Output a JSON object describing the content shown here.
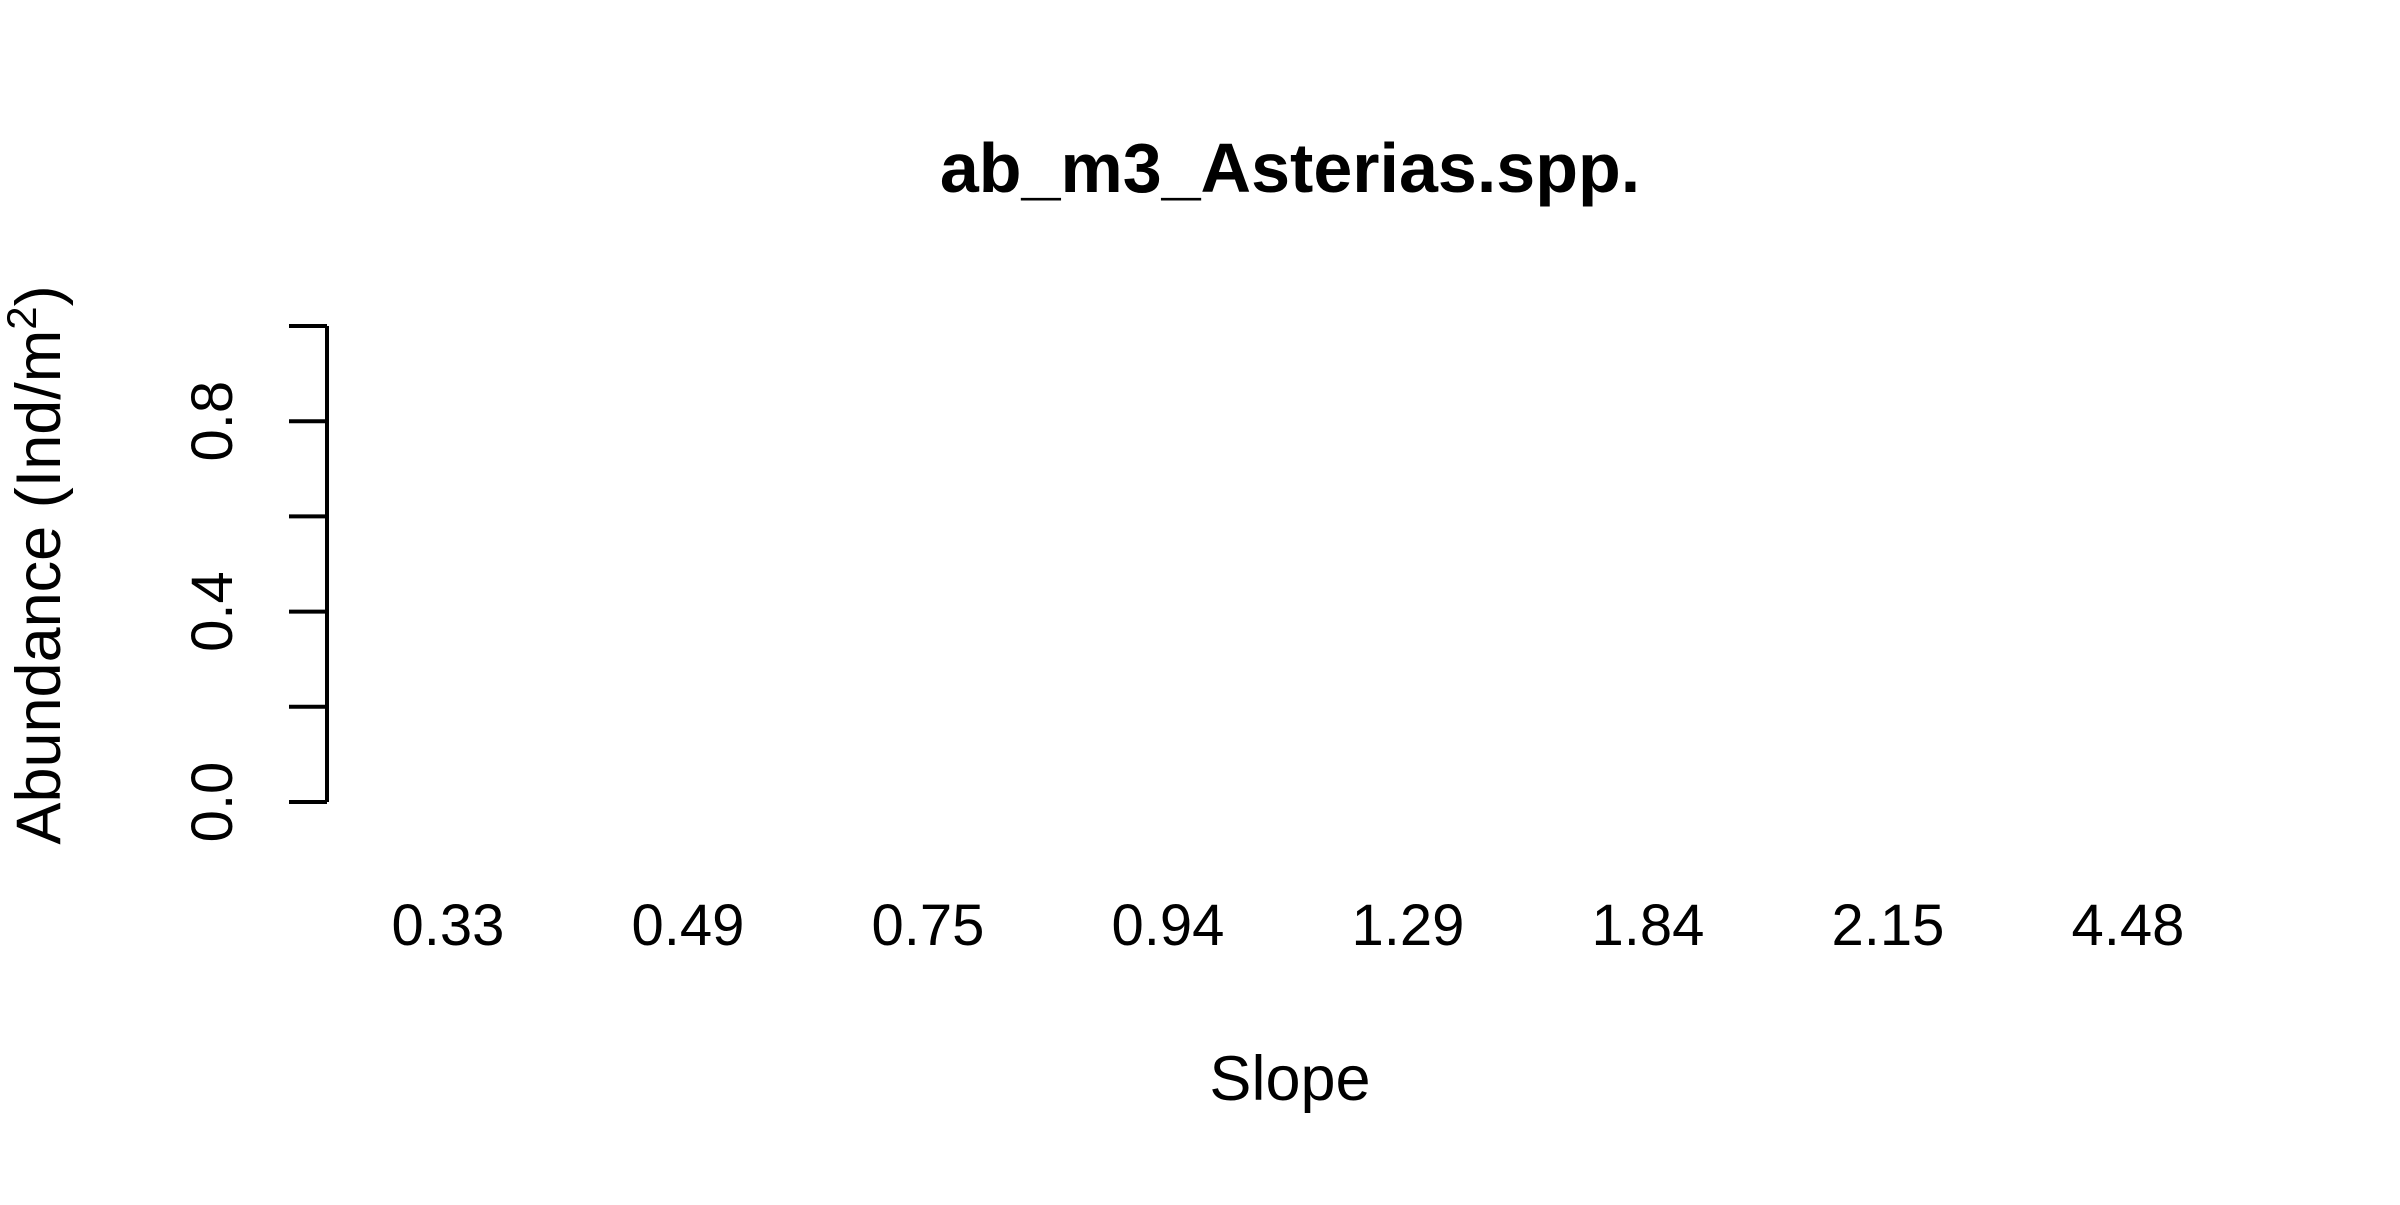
{
  "chart_data": {
    "type": "bar",
    "title": "ab_m3_Asterias.spp.",
    "xlabel": "Slope",
    "ylabel_main": "Abundance (Ind/m",
    "ylabel_sup": "2",
    "ylabel_close": ")",
    "categories": [
      "0.33",
      "0.49",
      "0.75",
      "0.94",
      "1.29",
      "1.84",
      "2.15",
      "4.48"
    ],
    "values": [
      0,
      0,
      0,
      0,
      0,
      0,
      0,
      0
    ],
    "ylim": [
      0,
      1
    ],
    "yticks": [
      0,
      0.2,
      0.4,
      0.6,
      0.8,
      1.0
    ],
    "ytick_labels": [
      "0.0",
      "",
      "0.4",
      "",
      "0.8",
      ""
    ],
    "colors": {
      "axis": "#000000",
      "background": "#ffffff"
    },
    "grid": false,
    "legend": "none"
  }
}
